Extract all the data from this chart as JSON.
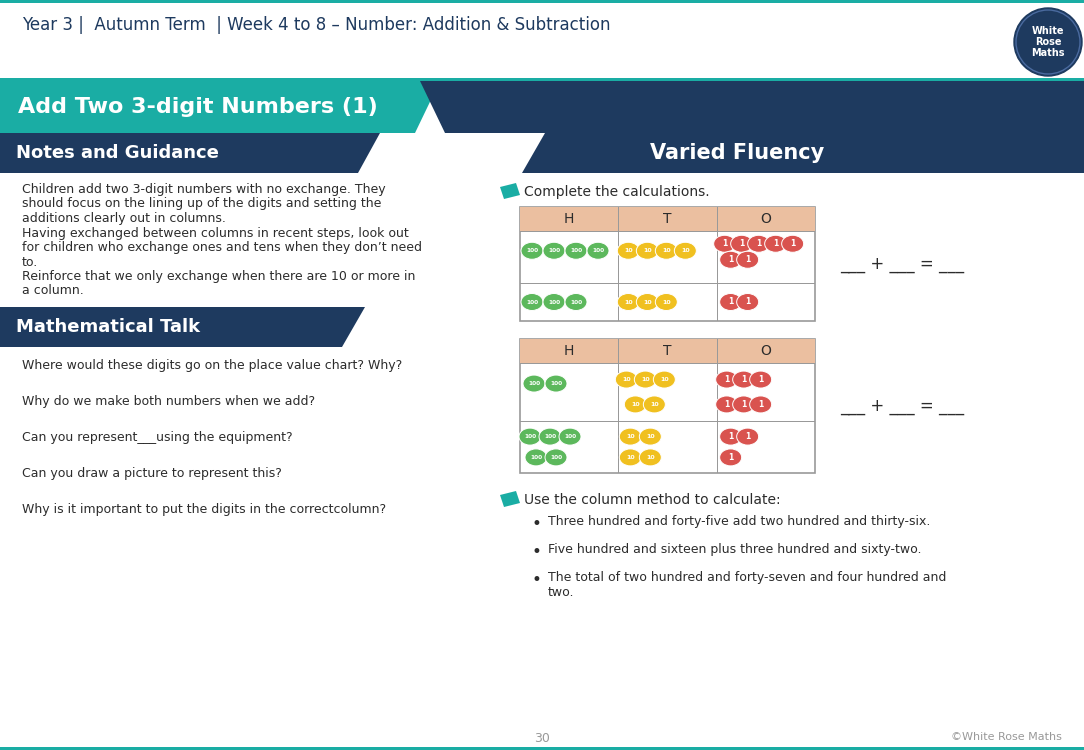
{
  "title_header": "Year 3 |  Autumn Term  | Week 4 to 8 – Number: Addition & Subtraction",
  "section_title": "Add Two 3-digit Numbers (1)",
  "left_heading": "Notes and Guidance",
  "right_heading": "Varied Fluency",
  "notes_lines": [
    "Children add two 3-digit numbers with no exchange. They",
    "should focus on the lining up of the digits and setting the",
    "additions clearly out in columns.",
    "Having exchanged between columns in recent steps, look out",
    "for children who exchange ones and tens when they don’t need",
    "to.",
    "Reinforce that we only exchange when there are 10 or more in",
    "a column."
  ],
  "math_talk_heading": "Mathematical Talk",
  "math_talk_questions": [
    "Where would these digits go on the place value chart? Why?",
    "Why do we make both numbers when we add?",
    "Can you represent___using the equipment?",
    "Can you draw a picture to represent this?",
    "Why is it important to put the digits in the correct​column?"
  ],
  "complete_calc_text": "Complete the calculations.",
  "column_method_text": "Use the column method to calculate:",
  "bullet_points": [
    "Three hundred and forty-five add two hundred and thirty-six.",
    "Five hundred and sixteen plus three hundred and sixty-two.",
    "The total of two hundred and forty-seven and four hundred and\ntwo."
  ],
  "page_number": "30",
  "copyright": "©White Rose Maths",
  "colors": {
    "teal": "#1AADA4",
    "dark_navy": "#1E3A5F",
    "table_header_bg": "#EBBFA0",
    "table_border": "#999999",
    "green_counter": "#5CB85C",
    "yellow_counter": "#F0C020",
    "red_counter": "#D9534F",
    "body_text": "#2C2C2C",
    "white": "#ffffff",
    "light_gray": "#cccccc"
  }
}
